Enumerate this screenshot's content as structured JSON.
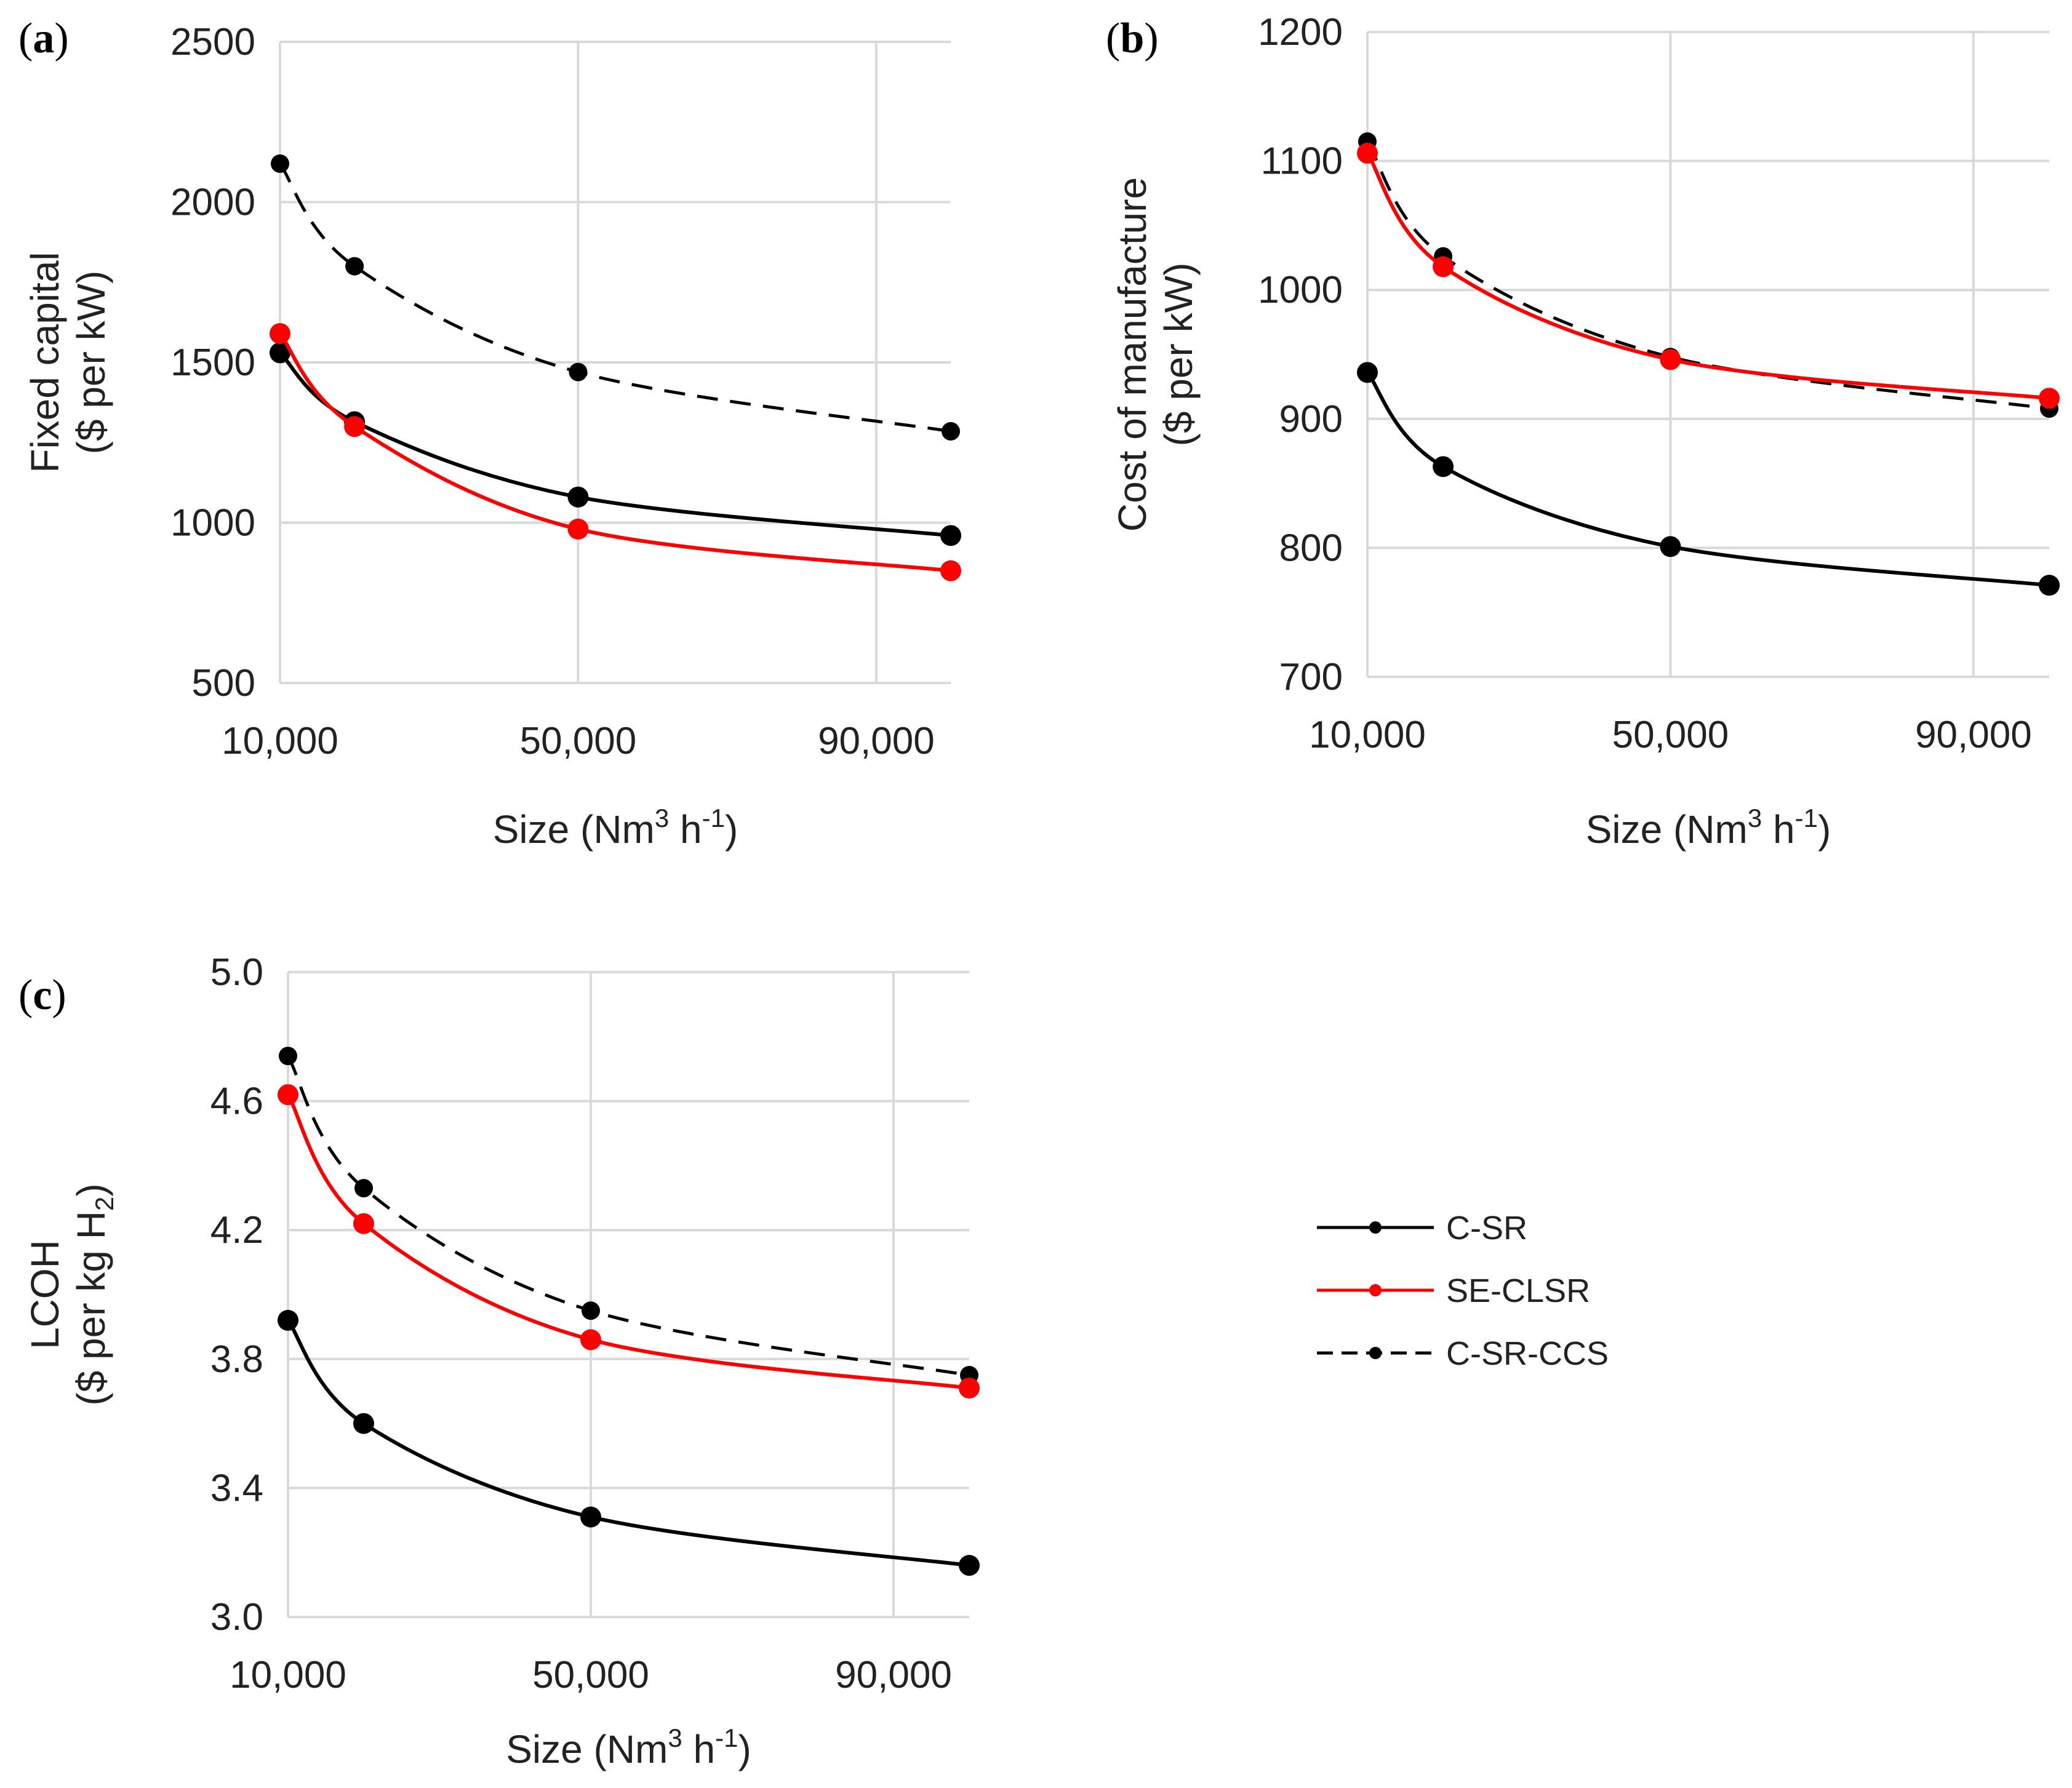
{
  "colors": {
    "C-SR": "#000000",
    "SE-CLSR": "#ff0000",
    "C-SR-CCS": "#000000",
    "grid": "#d9d9d9"
  },
  "legend": {
    "entries": [
      {
        "label": "C-SR",
        "color": "#000000",
        "dash": "solid"
      },
      {
        "label": "SE-CLSR",
        "color": "#ff0000",
        "dash": "solid"
      },
      {
        "label": "C-SR-CCS",
        "color": "#000000",
        "dash": "dashed"
      }
    ]
  },
  "chart_data": [
    {
      "id": "a",
      "panel_label": "(a)",
      "type": "line",
      "ylabel_line1": "Fixed capital",
      "ylabel_line2": "($ per kW)",
      "xlabel": {
        "main": "Size (Nm",
        "sup1": "3",
        "mid": " h",
        "sup2": "-1",
        "end": ")"
      },
      "xlim": [
        10000,
        100000
      ],
      "ylim": [
        500,
        2500
      ],
      "xticks": [
        10000,
        50000,
        90000
      ],
      "xtick_labels": [
        "10,000",
        "50,000",
        "90,000"
      ],
      "yticks": [
        500,
        1000,
        1500,
        2000,
        2500
      ],
      "ytick_labels": [
        "500",
        "1000",
        "1500",
        "2000",
        "2500"
      ],
      "x": [
        10000,
        20000,
        50000,
        100000
      ],
      "series": [
        {
          "name": "C-SR-CCS",
          "values": [
            2120,
            1800,
            1470,
            1285
          ]
        },
        {
          "name": "C-SR",
          "values": [
            1530,
            1315,
            1080,
            960
          ]
        },
        {
          "name": "SE-CLSR",
          "values": [
            1590,
            1300,
            980,
            850
          ]
        }
      ]
    },
    {
      "id": "b",
      "panel_label": "(b)",
      "type": "line",
      "ylabel_line1": "Cost of manufacture",
      "ylabel_line2": "($ per kW)",
      "xlabel": {
        "main": "Size (Nm",
        "sup1": "3",
        "mid": " h",
        "sup2": "-1",
        "end": ")"
      },
      "xlim": [
        10000,
        100000
      ],
      "ylim": [
        700,
        1200
      ],
      "xticks": [
        10000,
        50000,
        90000
      ],
      "xtick_labels": [
        "10,000",
        "50,000",
        "90,000"
      ],
      "yticks": [
        700,
        800,
        900,
        1000,
        1100,
        1200
      ],
      "ytick_labels": [
        "700",
        "800",
        "900",
        "1000",
        "1100",
        "1200"
      ],
      "x": [
        10000,
        20000,
        50000,
        100000
      ],
      "series": [
        {
          "name": "C-SR-CCS",
          "values": [
            1115,
            1026,
            948,
            908
          ]
        },
        {
          "name": "SE-CLSR",
          "values": [
            1106,
            1018,
            946,
            916
          ]
        },
        {
          "name": "C-SR",
          "values": [
            936,
            863,
            801,
            771
          ]
        }
      ]
    },
    {
      "id": "c",
      "panel_label": "(c)",
      "type": "line",
      "ylabel_line1": "LCOH",
      "ylabel_line2": {
        "main": "($ per kg H",
        "sub": "2",
        "end": ")"
      },
      "xlabel": {
        "main": "Size (Nm",
        "sup1": "3",
        "mid": " h",
        "sup2": "-1",
        "end": ")"
      },
      "xlim": [
        10000,
        100000
      ],
      "ylim": [
        3.0,
        5.0
      ],
      "xticks": [
        10000,
        50000,
        90000
      ],
      "xtick_labels": [
        "10,000",
        "50,000",
        "90,000"
      ],
      "yticks": [
        3.0,
        3.4,
        3.8,
        4.2,
        4.6,
        5.0
      ],
      "ytick_labels": [
        "3.0",
        "3.4",
        "3.8",
        "4.2",
        "4.6",
        "5.0"
      ],
      "x": [
        10000,
        20000,
        50000,
        100000
      ],
      "series": [
        {
          "name": "C-SR-CCS",
          "values": [
            4.74,
            4.33,
            3.95,
            3.75
          ]
        },
        {
          "name": "SE-CLSR",
          "values": [
            4.62,
            4.22,
            3.86,
            3.71
          ]
        },
        {
          "name": "C-SR",
          "values": [
            3.92,
            3.6,
            3.31,
            3.16
          ]
        }
      ]
    }
  ]
}
